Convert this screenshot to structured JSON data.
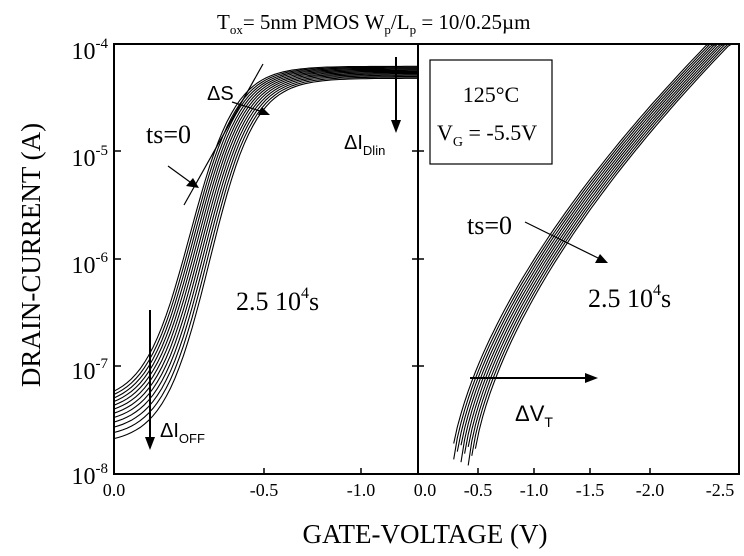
{
  "chart_data": {
    "type": "line",
    "title": {
      "prefix": "T",
      "sub1": "ox",
      "mid": "= 5nm PMOS W",
      "sub2": "p",
      "mid2": "/L",
      "sub3": "p",
      "suffix": " = 10/0.25µm"
    },
    "ylabel": "DRAIN-CURRENT (A)",
    "xlabel": "GATE-VOLTAGE (V)",
    "yscale": "log",
    "ylim": [
      1e-08,
      0.0001
    ],
    "y_ticks": [
      {
        "value": 1e-08,
        "base": "10",
        "exp": "-8"
      },
      {
        "value": 1e-07,
        "base": "10",
        "exp": "-7"
      },
      {
        "value": 1e-06,
        "base": "10",
        "exp": "-6"
      },
      {
        "value": 1e-05,
        "base": "10",
        "exp": "-5"
      },
      {
        "value": 0.0001,
        "base": "10",
        "exp": "-4"
      }
    ],
    "panels": [
      {
        "id": "linear",
        "xlim": [
          0.0,
          -1.4
        ],
        "x_ticks": [
          {
            "value": 0.0,
            "label": "0.0"
          },
          {
            "value": -0.5,
            "label": "-0.5"
          },
          {
            "value": -1.0,
            "label": "-1.0"
          }
        ],
        "annotations": {
          "delta_s": "ΔS",
          "ts0": "ts=0",
          "delta_idlin": {
            "main": "ΔI",
            "sub": "Dlin"
          },
          "delta_ioff": {
            "main": "ΔI",
            "sub": "OFF"
          },
          "time": {
            "main": "2.5 10",
            "sup": "4",
            "unit": "s"
          }
        },
        "series_count": 12,
        "vth_shift_range": [
          0.0,
          0.09
        ],
        "ioff_range": [
          4.6e-08,
          1.9e-08
        ],
        "ion_range": [
          6.2e-05,
          4.8e-05
        ]
      },
      {
        "id": "saturation",
        "xlim": [
          0.0,
          -2.5
        ],
        "x_ticks": [
          {
            "value": 0.0,
            "label": "0.0"
          },
          {
            "value": -0.5,
            "label": "-0.5"
          },
          {
            "value": -1.0,
            "label": "-1.0"
          },
          {
            "value": -1.5,
            "label": "-1.5"
          },
          {
            "value": -2.0,
            "label": "-2.0"
          },
          {
            "value": -2.5,
            "label": "-2.5"
          }
        ],
        "annotations": {
          "condition_temp": "125°C",
          "condition_vg": {
            "main": "V",
            "sub": "G",
            "rest": " = -5.5V"
          },
          "ts0": "ts=0",
          "delta_vt": {
            "main": "ΔV",
            "sub": "T"
          },
          "time": {
            "main": "2.5 10",
            "sup": "4",
            "unit": "s"
          }
        },
        "series_count": 10,
        "vth_shift_range": [
          0.0,
          0.18
        ]
      }
    ],
    "colors": {
      "line": "#000000",
      "background": "#ffffff"
    }
  }
}
